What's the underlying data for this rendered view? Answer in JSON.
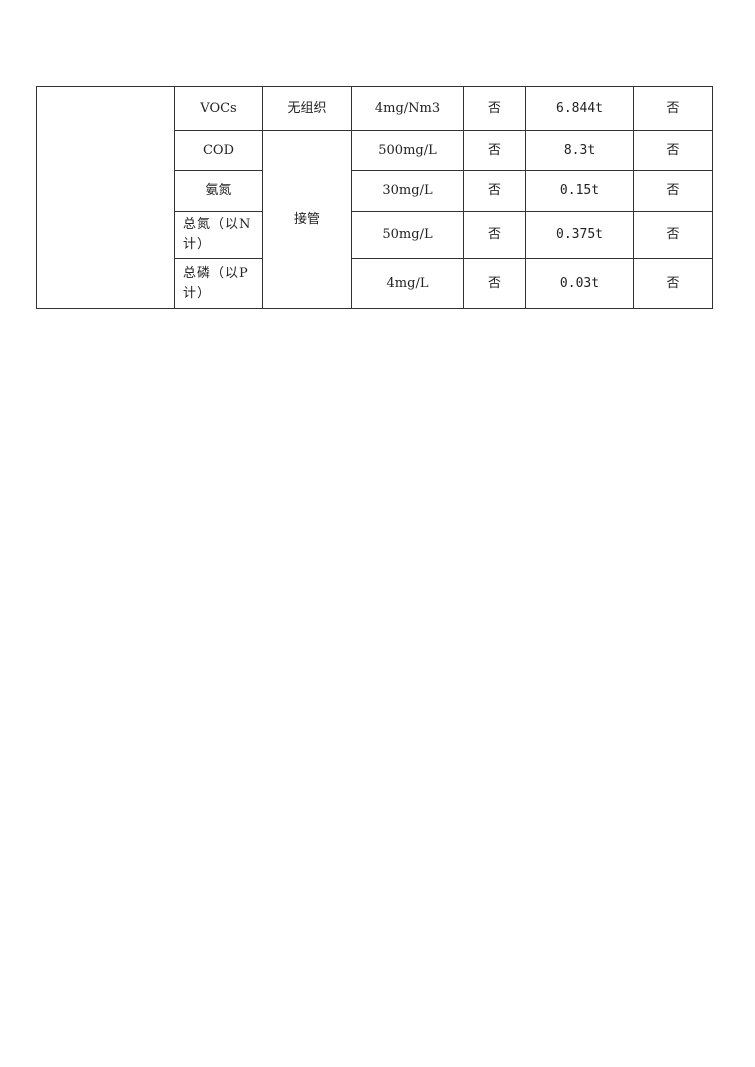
{
  "table": {
    "rows": [
      {
        "pollutant": "VOCs",
        "method": "无组织",
        "limit": "4mg/Nm3",
        "c1": "否",
        "amount": "6.844t",
        "c2": "否"
      },
      {
        "pollutant": "COD",
        "method": "接管",
        "limit": "500mg/L",
        "c1": "否",
        "amount": "8.3t",
        "c2": "否"
      },
      {
        "pollutant": "氨氮",
        "limit": "30mg/L",
        "c1": "否",
        "amount": "0.15t",
        "c2": "否"
      },
      {
        "pollutant": "总氮（以N计）",
        "limit": "50mg/L",
        "c1": "否",
        "amount": "0.375t",
        "c2": "否"
      },
      {
        "pollutant": "总磷（以P计）",
        "limit": "4mg/L",
        "c1": "否",
        "amount": "0.03t",
        "c2": "否"
      }
    ]
  }
}
